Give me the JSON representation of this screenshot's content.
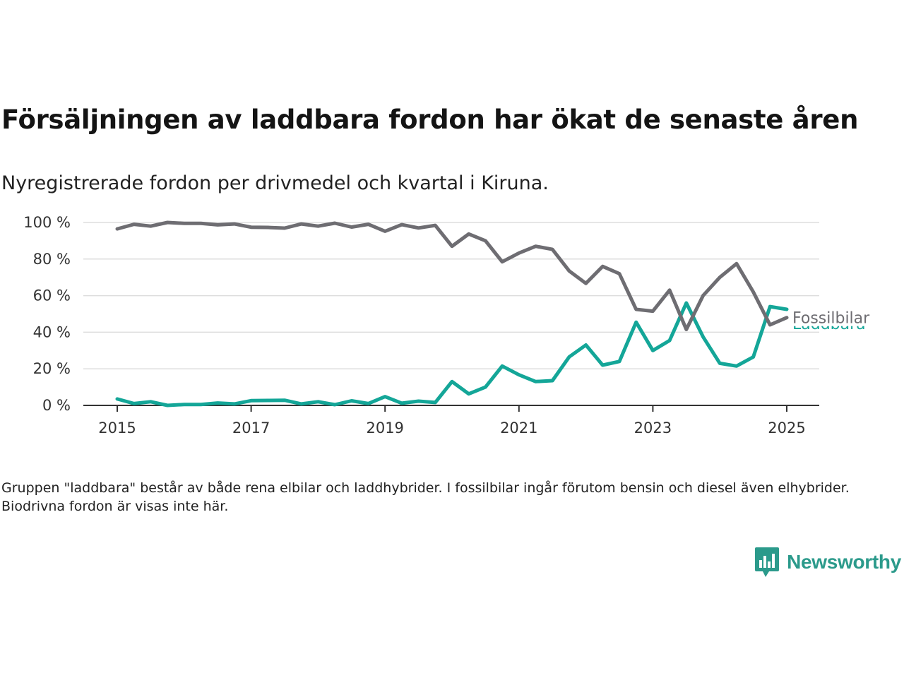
{
  "title": "Försäljningen av laddbara fordon har ökat de senaste åren",
  "subtitle": "Nyregistrerade fordon per drivmedel och kvartal i Kiruna.",
  "note": "Gruppen \"laddbara\" består av både rena elbilar och laddhybrider. I fossilbilar ingår förutom bensin och diesel även elhybrider. Biodrivna fordon är visas inte här.",
  "brand": {
    "name": "Newsworthy",
    "logo_icon": "newsworthy-bar-chart-icon"
  },
  "colors": {
    "fossil": "#6e6d72",
    "laddbara": "#14a698",
    "grid": "#dddddd",
    "axis": "#333333",
    "brand": "#2b9a8b"
  },
  "chart_data": {
    "type": "line",
    "x_unit": "year (quarterly data)",
    "x": [
      2015.0,
      2015.25,
      2015.5,
      2015.75,
      2016.0,
      2016.25,
      2016.5,
      2016.75,
      2017.0,
      2017.25,
      2017.5,
      2017.75,
      2018.0,
      2018.25,
      2018.5,
      2018.75,
      2019.0,
      2019.25,
      2019.5,
      2019.75,
      2020.0,
      2020.25,
      2020.5,
      2020.75,
      2021.0,
      2021.25,
      2021.5,
      2021.75,
      2022.0,
      2022.25,
      2022.5,
      2022.75,
      2023.0,
      2023.25,
      2023.5,
      2023.75,
      2024.0,
      2024.25,
      2024.5,
      2024.75,
      2025.0
    ],
    "series": [
      {
        "name": "Fossilbilar",
        "color": "#6e6d72",
        "values": [
          96.5,
          99,
          98,
          100,
          99.5,
          99.5,
          98.7,
          99.2,
          97.4,
          97.3,
          96.9,
          99.2,
          98,
          99.6,
          97.5,
          99,
          95.2,
          98.8,
          97,
          98.4,
          87,
          93.7,
          90,
          78.5,
          83.3,
          87,
          85.3,
          73.5,
          66.7,
          76,
          72,
          52.5,
          51.5,
          63,
          41.5,
          60,
          70,
          77.5,
          62,
          44,
          48
        ]
      },
      {
        "name": "Laddbara",
        "color": "#14a698",
        "values": [
          3.5,
          1,
          2,
          0,
          0.5,
          0.5,
          1.3,
          0.8,
          2.6,
          2.7,
          2.8,
          0.8,
          2,
          0.4,
          2.5,
          1,
          4.8,
          1.2,
          2.3,
          1.6,
          13,
          6.3,
          10,
          21.5,
          16.7,
          13,
          13.5,
          26.5,
          33,
          22,
          24,
          45.5,
          30,
          35.5,
          56,
          37.5,
          23,
          21.5,
          26.5,
          54,
          52.5
        ]
      }
    ],
    "xlabel": "",
    "ylabel": "",
    "xlim": [
      2014.75,
      2025.25
    ],
    "ylim": [
      0,
      100
    ],
    "y_ticks": [
      0,
      20,
      40,
      60,
      80,
      100
    ],
    "y_tick_labels": [
      "0 %",
      "20 %",
      "40 %",
      "60 %",
      "80 %",
      "100 %"
    ],
    "x_ticks": [
      2015,
      2017,
      2019,
      2021,
      2023,
      2025
    ],
    "x_tick_labels": [
      "2015",
      "2017",
      "2019",
      "2021",
      "2023",
      "2025"
    ],
    "grid": "horizontal",
    "legend": "direct labels at line ends (right)"
  }
}
